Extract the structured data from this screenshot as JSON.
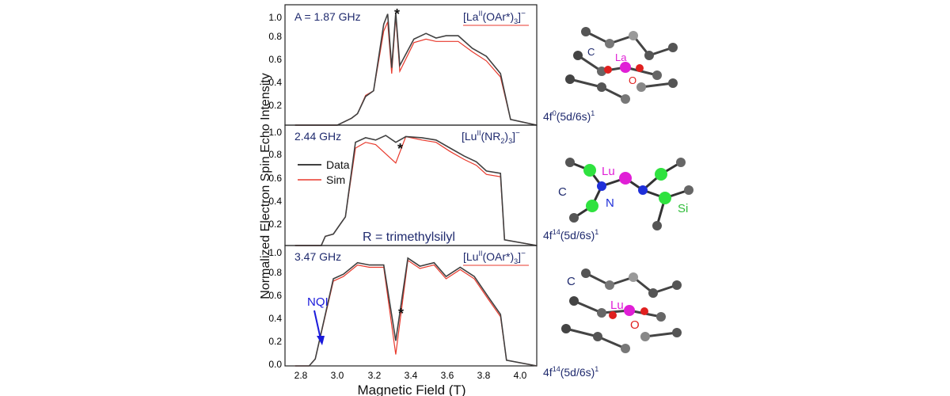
{
  "figure": {
    "ylabel": "Normalized Electron Spin Echo Intensity",
    "xlabel": "Magnetic Field (T)",
    "xticks": [
      "2.8",
      "3.0",
      "3.2",
      "3.4",
      "3.6",
      "3.8",
      "4.0"
    ],
    "legend": {
      "data": "Data",
      "sim": "Sim"
    },
    "colors": {
      "data": "#404040",
      "sim": "#e8392c",
      "label": "#1f2a6e",
      "nqi": "#1a1adb"
    }
  },
  "chart_data": [
    {
      "type": "line",
      "hyperfine_label": "A = 1.87 GHz",
      "compound": "[La",
      "compound_sup": "II",
      "compound_tail": "(OAr*)",
      "compound_sub": "3",
      "compound_end": "]",
      "compound_charge": "−",
      "config": "4f",
      "config_sup": "0",
      "config_tail": "(5d/6s)",
      "config_sup2": "1",
      "star": "*",
      "xlim": [
        2.8,
        4.05
      ],
      "ylim": [
        0,
        1.05
      ],
      "yticks": [
        "0.2",
        "0.4",
        "0.6",
        "0.8",
        "1.0"
      ],
      "series": [
        {
          "name": "Data",
          "x": [
            2.85,
            3.06,
            3.13,
            3.16,
            3.2,
            3.24,
            3.29,
            3.31,
            3.33,
            3.35,
            3.37,
            3.44,
            3.5,
            3.55,
            3.6,
            3.66,
            3.73,
            3.8,
            3.87,
            3.92,
            4.05
          ],
          "y": [
            0,
            0,
            0.06,
            0.1,
            0.25,
            0.3,
            0.88,
            0.97,
            0.5,
            0.98,
            0.52,
            0.75,
            0.8,
            0.76,
            0.78,
            0.78,
            0.67,
            0.6,
            0.45,
            0.05,
            0
          ]
        },
        {
          "name": "Sim",
          "x": [
            2.85,
            3.06,
            3.13,
            3.16,
            3.2,
            3.24,
            3.29,
            3.31,
            3.33,
            3.35,
            3.37,
            3.44,
            3.5,
            3.55,
            3.6,
            3.66,
            3.73,
            3.8,
            3.87,
            3.92,
            4.05
          ],
          "y": [
            0,
            0,
            0.06,
            0.1,
            0.26,
            0.3,
            0.82,
            0.9,
            0.45,
            0.95,
            0.47,
            0.72,
            0.75,
            0.73,
            0.73,
            0.73,
            0.64,
            0.56,
            0.42,
            0.05,
            0
          ]
        }
      ],
      "atom_labels": [
        "C",
        "La",
        "O"
      ]
    },
    {
      "type": "line",
      "hyperfine_label": "2.44 GHz",
      "compound": "[Lu",
      "compound_sup": "II",
      "compound_tail": "(NR",
      "compound_sub": "2",
      "compound_end": ")",
      "compound_sub2": "3",
      "compound_end2": "]",
      "compound_charge": "−",
      "config": "4f",
      "config_sup": "14",
      "config_tail": "(5d/6s)",
      "config_sup2": "1",
      "note": "R = trimethylsilyl",
      "star": "*",
      "xlim": [
        2.8,
        4.05
      ],
      "ylim": [
        0,
        1.05
      ],
      "yticks": [
        "0.2",
        "0.4",
        "0.6",
        "0.8",
        "1.0"
      ],
      "series": [
        {
          "name": "Data",
          "x": [
            2.85,
            2.98,
            3.0,
            3.04,
            3.08,
            3.1,
            3.15,
            3.2,
            3.25,
            3.3,
            3.35,
            3.4,
            3.48,
            3.55,
            3.62,
            3.69,
            3.75,
            3.8,
            3.87,
            3.89,
            4.05
          ],
          "y": [
            0,
            0,
            0.08,
            0.1,
            0.2,
            0.25,
            0.9,
            0.94,
            0.92,
            0.96,
            0.9,
            0.95,
            0.94,
            0.92,
            0.85,
            0.78,
            0.73,
            0.65,
            0.63,
            0.05,
            0
          ]
        },
        {
          "name": "Sim",
          "x": [
            2.85,
            2.98,
            3.0,
            3.04,
            3.08,
            3.1,
            3.15,
            3.2,
            3.25,
            3.3,
            3.35,
            3.4,
            3.48,
            3.55,
            3.62,
            3.69,
            3.75,
            3.8,
            3.87,
            3.89,
            4.05
          ],
          "y": [
            0,
            0,
            0.08,
            0.1,
            0.2,
            0.25,
            0.85,
            0.9,
            0.88,
            0.8,
            0.72,
            0.95,
            0.92,
            0.9,
            0.82,
            0.75,
            0.7,
            0.62,
            0.6,
            0.05,
            0
          ]
        }
      ],
      "atom_labels": [
        "Lu",
        "C",
        "N",
        "Si"
      ]
    },
    {
      "type": "line",
      "hyperfine_label": "3.47 GHz",
      "compound": "[Lu",
      "compound_sup": "II",
      "compound_tail": "(OAr*)",
      "compound_sub": "3",
      "compound_end": "]",
      "compound_charge": "−",
      "config": "4f",
      "config_sup": "14",
      "config_tail": "(5d/6s)",
      "config_sup2": "1",
      "annotation": "NQI",
      "star": "*",
      "xlim": [
        2.8,
        4.05
      ],
      "ylim": [
        0,
        1.05
      ],
      "yticks": [
        "0.0",
        "0.2",
        "0.4",
        "0.6",
        "0.8",
        "1.0"
      ],
      "series": [
        {
          "name": "Data",
          "x": [
            2.85,
            2.92,
            2.95,
            3.04,
            3.09,
            3.16,
            3.22,
            3.29,
            3.35,
            3.41,
            3.47,
            3.54,
            3.6,
            3.67,
            3.74,
            3.81,
            3.87,
            3.9,
            4.05
          ],
          "y": [
            0,
            0,
            0.06,
            0.76,
            0.8,
            0.9,
            0.88,
            0.88,
            0.22,
            0.94,
            0.87,
            0.9,
            0.78,
            0.86,
            0.78,
            0.6,
            0.45,
            0.05,
            0
          ]
        },
        {
          "name": "Sim",
          "x": [
            2.85,
            2.92,
            2.95,
            3.04,
            3.09,
            3.16,
            3.22,
            3.29,
            3.35,
            3.41,
            3.47,
            3.54,
            3.6,
            3.67,
            3.74,
            3.81,
            3.87,
            3.9,
            4.05
          ],
          "y": [
            0,
            0,
            0.06,
            0.74,
            0.78,
            0.88,
            0.86,
            0.86,
            0.1,
            0.92,
            0.85,
            0.88,
            0.76,
            0.84,
            0.76,
            0.58,
            0.43,
            0.05,
            0
          ]
        }
      ],
      "atom_labels": [
        "C",
        "Lu",
        "O"
      ]
    }
  ]
}
